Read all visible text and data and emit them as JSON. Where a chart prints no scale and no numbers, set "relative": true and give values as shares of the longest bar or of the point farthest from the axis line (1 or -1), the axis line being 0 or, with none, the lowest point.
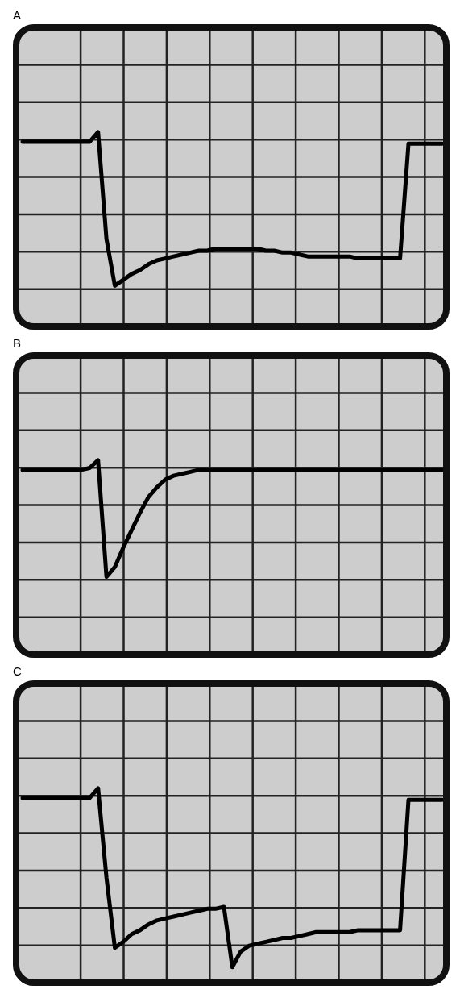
{
  "chart_data": [
    {
      "type": "line",
      "title": "A",
      "relative": true,
      "grid": true,
      "categories": [
        null,
        null,
        null,
        null,
        null,
        null,
        null,
        null,
        null,
        null,
        null,
        null,
        null,
        null,
        null,
        null,
        null,
        null,
        null,
        null,
        null,
        null,
        null,
        null,
        null,
        null,
        null,
        null,
        null,
        null,
        null,
        null,
        null,
        null,
        null,
        null,
        null,
        null,
        null,
        null,
        null,
        null,
        null,
        null,
        null,
        null,
        null,
        null,
        null,
        null,
        null
      ],
      "series": [
        {
          "color": "#000000",
          "values": [
            0.95,
            0.95,
            0.95,
            0.95,
            0.95,
            0.95,
            0.95,
            0.95,
            0.95,
            1.0,
            0.45,
            0.21,
            0.24,
            0.27,
            0.29,
            0.32,
            0.34,
            0.35,
            0.36,
            0.37,
            0.38,
            0.39,
            0.39,
            0.4,
            0.4,
            0.4,
            0.4,
            0.4,
            0.4,
            0.39,
            0.39,
            0.38,
            0.38,
            0.37,
            0.36,
            0.36,
            0.36,
            0.36,
            0.36,
            0.36,
            0.35,
            0.35,
            0.35,
            0.35,
            0.35,
            0.35,
            0.94,
            0.94,
            0.94,
            0.94,
            0.94
          ]
        }
      ]
    },
    {
      "type": "line",
      "title": "B",
      "relative": true,
      "grid": true,
      "categories": [
        null,
        null,
        null,
        null,
        null,
        null,
        null,
        null,
        null,
        null,
        null,
        null,
        null,
        null,
        null,
        null,
        null,
        null,
        null,
        null,
        null,
        null,
        null,
        null,
        null,
        null,
        null,
        null,
        null,
        null,
        null,
        null,
        null,
        null,
        null,
        null,
        null,
        null,
        null,
        null,
        null,
        null,
        null,
        null,
        null,
        null,
        null,
        null,
        null,
        null,
        null
      ],
      "series": [
        {
          "color": "#000000",
          "values": [
            0.95,
            0.95,
            0.95,
            0.95,
            0.95,
            0.95,
            0.95,
            0.95,
            0.96,
            1.0,
            0.4,
            0.45,
            0.55,
            0.64,
            0.73,
            0.81,
            0.86,
            0.9,
            0.92,
            0.93,
            0.94,
            0.95,
            0.95,
            0.95,
            0.95,
            0.95,
            0.95,
            0.95,
            0.95,
            0.95,
            0.95,
            0.95,
            0.95,
            0.95,
            0.95,
            0.95,
            0.95,
            0.95,
            0.95,
            0.95,
            0.95,
            0.95,
            0.95,
            0.95,
            0.95,
            0.95,
            0.95,
            0.95,
            0.95,
            0.95,
            0.95
          ]
        }
      ]
    },
    {
      "type": "line",
      "title": "C",
      "relative": true,
      "grid": true,
      "categories": [
        null,
        null,
        null,
        null,
        null,
        null,
        null,
        null,
        null,
        null,
        null,
        null,
        null,
        null,
        null,
        null,
        null,
        null,
        null,
        null,
        null,
        null,
        null,
        null,
        null,
        null,
        null,
        null,
        null,
        null,
        null,
        null,
        null,
        null,
        null,
        null,
        null,
        null,
        null,
        null,
        null,
        null,
        null,
        null,
        null,
        null,
        null,
        null,
        null,
        null,
        null
      ],
      "series": [
        {
          "color": "#000000",
          "values": [
            0.95,
            0.95,
            0.95,
            0.95,
            0.95,
            0.95,
            0.95,
            0.95,
            0.95,
            1.0,
            0.54,
            0.18,
            0.21,
            0.25,
            0.27,
            0.3,
            0.32,
            0.33,
            0.34,
            0.35,
            0.36,
            0.37,
            0.38,
            0.38,
            0.39,
            0.08,
            0.16,
            0.19,
            0.2,
            0.21,
            0.22,
            0.23,
            0.23,
            0.24,
            0.25,
            0.26,
            0.26,
            0.26,
            0.26,
            0.26,
            0.27,
            0.27,
            0.27,
            0.27,
            0.27,
            0.27,
            0.94,
            0.94,
            0.94,
            0.94,
            0.94
          ]
        }
      ]
    }
  ]
}
